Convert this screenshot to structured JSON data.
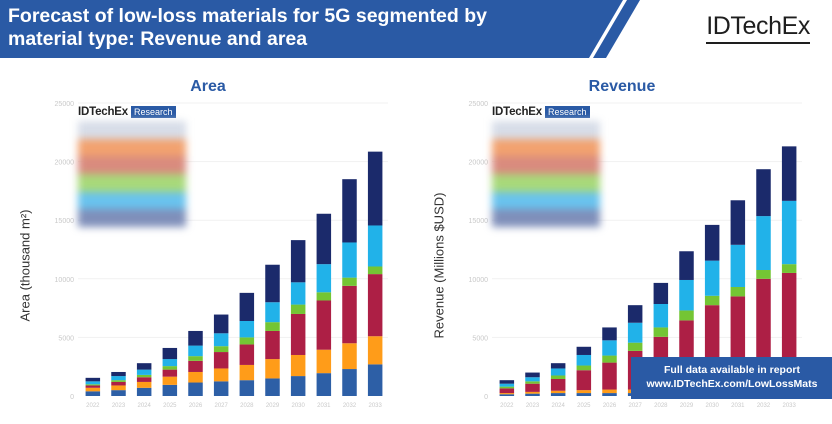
{
  "header": {
    "title_line1": "Forecast of low-loss materials for 5G segmented by",
    "title_line2": "material type: Revenue and area",
    "brand": "IDTechEx"
  },
  "colors": {
    "banner": "#2a5aa5",
    "series": [
      "#2d5fa6",
      "#ff9c19",
      "#ad1f45",
      "#74c534",
      "#21b2e9",
      "#1b2a6b"
    ],
    "axis_text": "#c9c9c9",
    "grid": "#f1f1f1"
  },
  "legend": {
    "brand": "IDTechEx",
    "tag": "Research"
  },
  "callout": {
    "line1": "Full data available in report",
    "line2": "www.IDTechEx.com/LowLossMats"
  },
  "chart_data": [
    {
      "type": "bar",
      "stacked": true,
      "title": "Area",
      "ylabel": "Area (thousand m²)",
      "xlabel": "",
      "ylim": [
        0,
        25000
      ],
      "yticks": [
        "0",
        "5000",
        "10000",
        "15000",
        "20000",
        "25000"
      ],
      "categories": [
        "2022",
        "2023",
        "2024",
        "2025",
        "2026",
        "2027",
        "2028",
        "2029",
        "2030",
        "2031",
        "2032",
        "2033"
      ],
      "series": [
        {
          "name": "Series 1",
          "values": [
            400,
            500,
            700,
            950,
            1150,
            1250,
            1350,
            1500,
            1700,
            1950,
            2300,
            2700
          ]
        },
        {
          "name": "Series 2",
          "values": [
            300,
            400,
            500,
            700,
            900,
            1100,
            1300,
            1650,
            1800,
            2000,
            2200,
            2400
          ]
        },
        {
          "name": "Series 3",
          "values": [
            200,
            300,
            400,
            600,
            950,
            1400,
            1750,
            2400,
            3500,
            4200,
            4900,
            5300
          ]
        },
        {
          "name": "Series 4",
          "values": [
            100,
            150,
            200,
            300,
            400,
            500,
            600,
            750,
            800,
            700,
            700,
            650
          ]
        },
        {
          "name": "Series 5",
          "values": [
            250,
            350,
            450,
            600,
            900,
            1100,
            1400,
            1700,
            1900,
            2400,
            3000,
            3500
          ]
        },
        {
          "name": "Series 6",
          "values": [
            300,
            350,
            550,
            950,
            1250,
            1600,
            2400,
            3200,
            3600,
            4300,
            5400,
            6300
          ]
        }
      ]
    },
    {
      "type": "bar",
      "stacked": true,
      "title": "Revenue",
      "ylabel": "Revenue (Millions $USD)",
      "xlabel": "",
      "ylim": [
        0,
        25000
      ],
      "yticks": [
        "0",
        "5000",
        "10000",
        "15000",
        "20000",
        "25000"
      ],
      "categories": [
        "2022",
        "2023",
        "2024",
        "2025",
        "2026",
        "2027",
        "2028",
        "2029",
        "2030",
        "2031",
        "2032",
        "2033"
      ],
      "series": [
        {
          "name": "Series 1",
          "values": [
            150,
            200,
            250,
            250,
            250,
            250,
            250,
            250,
            250,
            250,
            250,
            250
          ]
        },
        {
          "name": "Series 2",
          "values": [
            100,
            150,
            200,
            250,
            300,
            300,
            300,
            300,
            300,
            250,
            250,
            250
          ]
        },
        {
          "name": "Series 3",
          "values": [
            400,
            700,
            1000,
            1700,
            2300,
            3300,
            4500,
            5900,
            7200,
            8000,
            9500,
            10000
          ]
        },
        {
          "name": "Series 4",
          "values": [
            150,
            200,
            300,
            400,
            600,
            700,
            800,
            850,
            800,
            800,
            750,
            750
          ]
        },
        {
          "name": "Series 5",
          "values": [
            250,
            350,
            600,
            900,
            1300,
            1700,
            2000,
            2600,
            3000,
            3600,
            4600,
            5400
          ]
        },
        {
          "name": "Series 6",
          "values": [
            300,
            400,
            450,
            700,
            1100,
            1500,
            1800,
            2450,
            3050,
            3800,
            4000,
            4650
          ]
        }
      ]
    }
  ]
}
